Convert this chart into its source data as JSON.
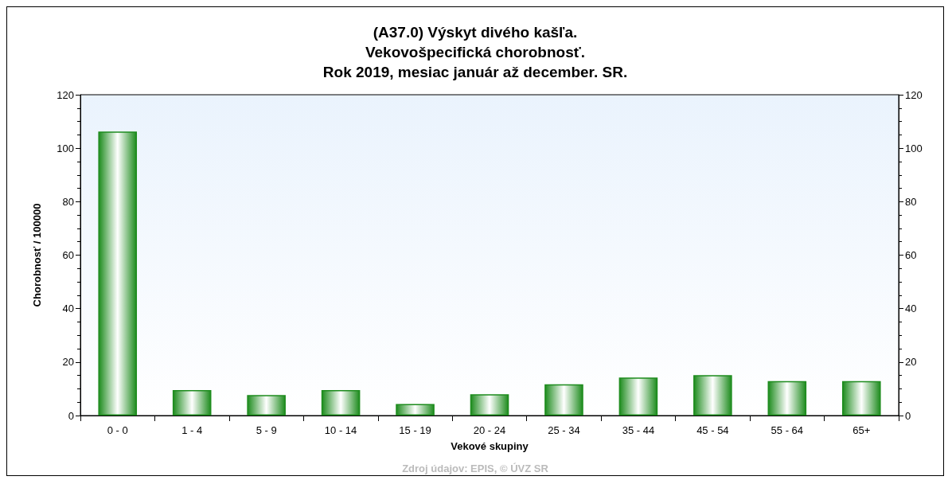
{
  "chart_data": {
    "type": "bar",
    "title": "(A37.0) Výskyt divého kašľa.\nVekovošpecifická chorobnosť.\nRok 2019, mesiac január až december. SR.",
    "xlabel": "Vekové skupiny",
    "ylabel": "Chorobnosť / 100000",
    "categories": [
      "0 - 0",
      "1 - 4",
      "5 - 9",
      "10 - 14",
      "15 - 19",
      "20 - 24",
      "25 - 34",
      "35 - 44",
      "45 - 54",
      "55 - 64",
      "65+"
    ],
    "values": [
      106.2,
      9.5,
      7.7,
      9.5,
      4.3,
      8.0,
      11.7,
      14.2,
      15.1,
      12.9,
      12.9
    ],
    "color": "#1e8c1e",
    "ylim": [
      0,
      120
    ],
    "yticks": [
      0,
      20,
      40,
      60,
      80,
      100,
      120
    ],
    "y2lim": [
      0,
      120
    ],
    "y2ticks": [
      0,
      20,
      40,
      60,
      80,
      100,
      120
    ],
    "grid": false,
    "annotations": [
      "Zdroj údajov: EPIS, © ÚVZ SR"
    ]
  }
}
